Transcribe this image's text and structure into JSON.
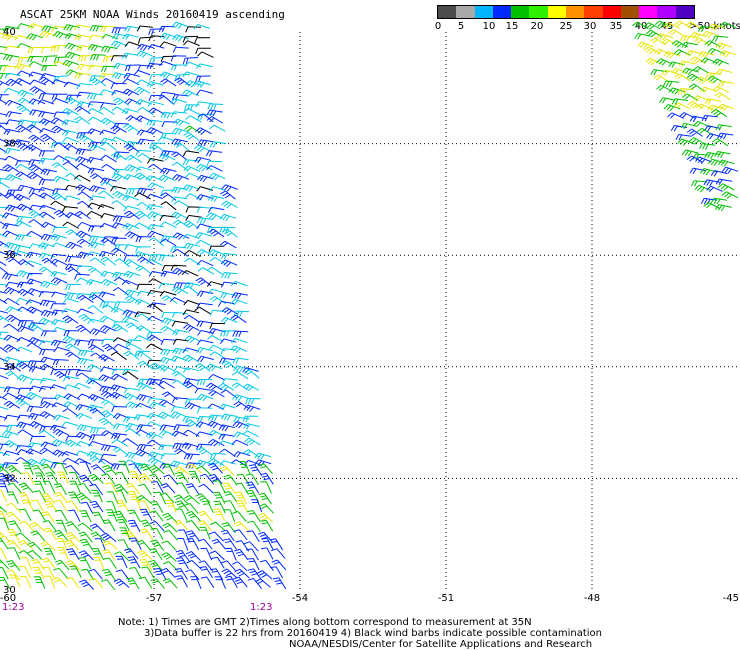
{
  "map": {
    "title": "ASCAT 25KM NOAA Winds 20160419 ascending",
    "speed_scale": {
      "labels": [
        "0",
        "5",
        "10",
        "15",
        "20",
        "25",
        "30",
        "35",
        "40",
        "45",
        ">50 knots"
      ],
      "colors": [
        "#4b4b4b",
        "#a9a9a9",
        "#00b4ff",
        "#0028ff",
        "#00c000",
        "#30f000",
        "#ffff00",
        "#ff9000",
        "#ff4000",
        "#ff0000",
        "#a05000",
        "#ff00ff",
        "#b000ff",
        "#5000c0"
      ]
    },
    "lat_labels": [
      "40",
      "38",
      "36",
      "34",
      "32",
      "30"
    ],
    "lon_labels": [
      "-60",
      "-57",
      "-54",
      "-51",
      "-48",
      "-45"
    ],
    "time_labels": [
      "1:23",
      "1:23"
    ],
    "notes": [
      "Note: 1) Times are GMT 2)Times along bottom correspond to measurement at 35N",
      "3)Data buffer is 22 hrs from 20160419 4) Black wind barbs indicate possible contamination",
      "NOAA/NESDIS/Center for Satellite Applications and Research"
    ],
    "wind_colors": {
      "contaminated": "#000000",
      "10-15": "#0028ff",
      "5-10": "#00c8e6",
      "15-20": "#00c000",
      "20-25": "#e6e600"
    }
  }
}
